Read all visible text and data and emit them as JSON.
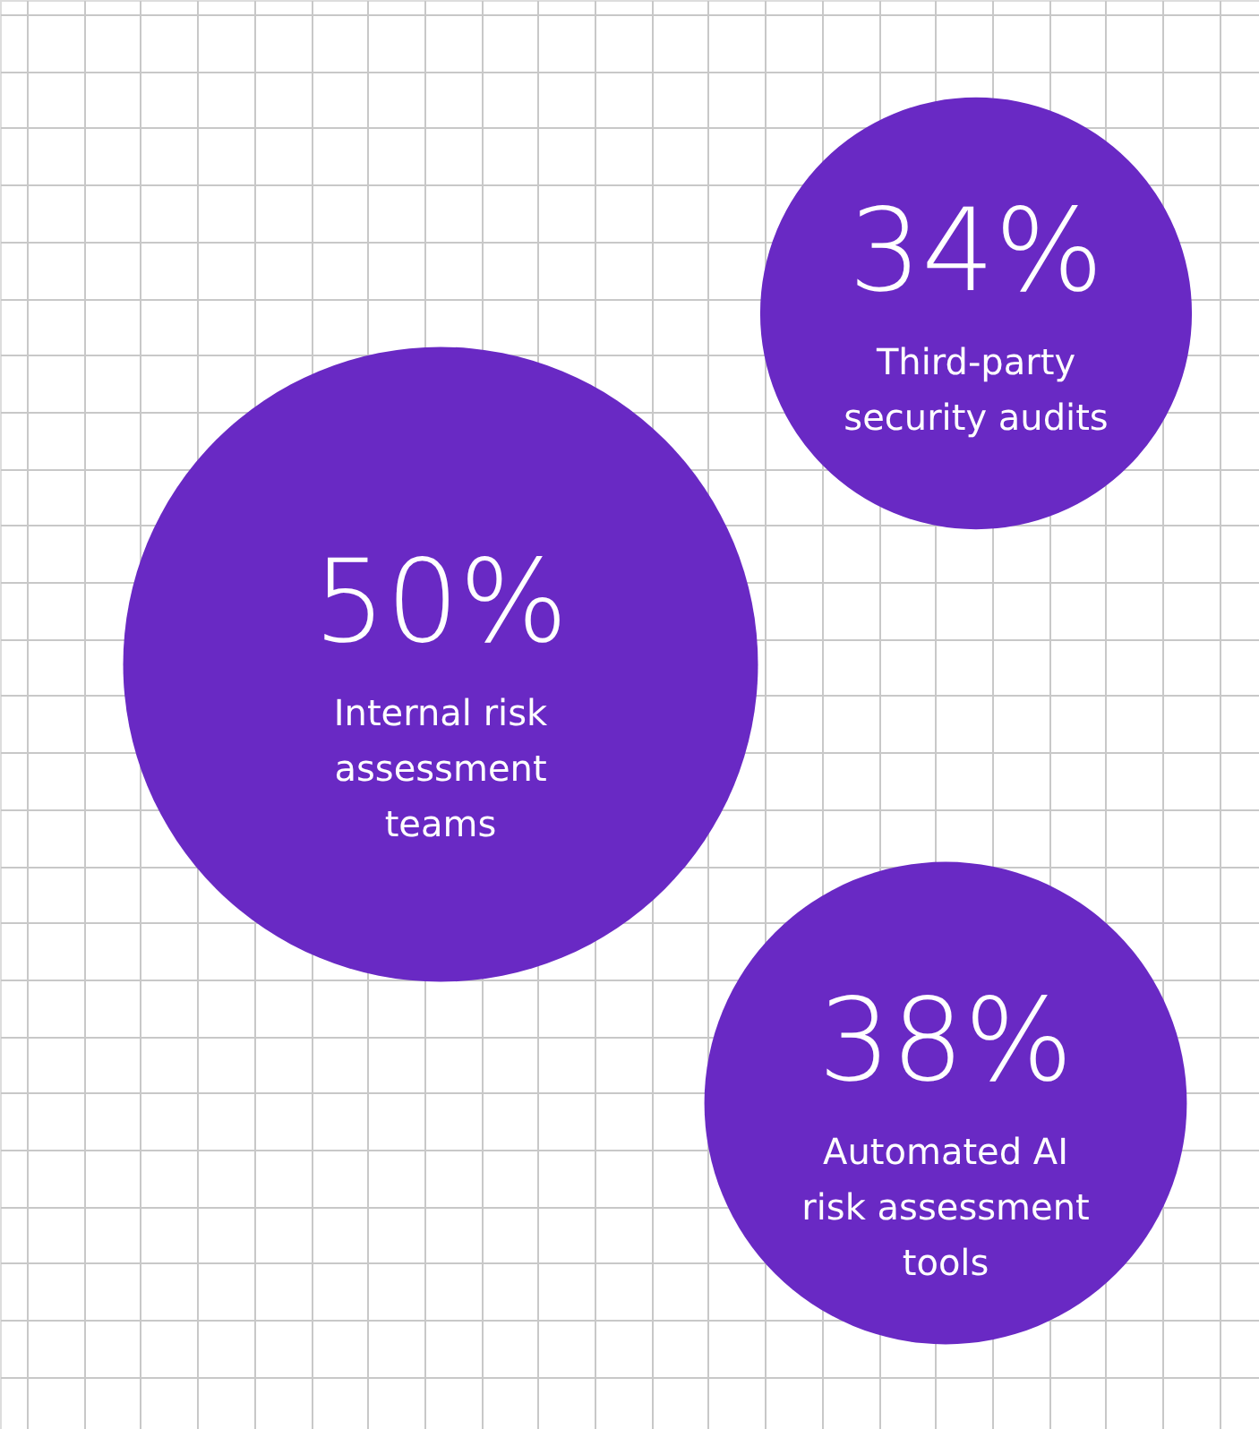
{
  "chart_data": {
    "type": "other",
    "categories": [
      "Internal risk\nassessment\nteams",
      "Third-party\nsecurity audits",
      "Automated AI\nrisk assessment\ntools"
    ],
    "values": [
      50,
      34,
      38
    ],
    "value_labels": [
      "50%",
      "34%",
      "38%"
    ],
    "color": "#6929c4"
  }
}
